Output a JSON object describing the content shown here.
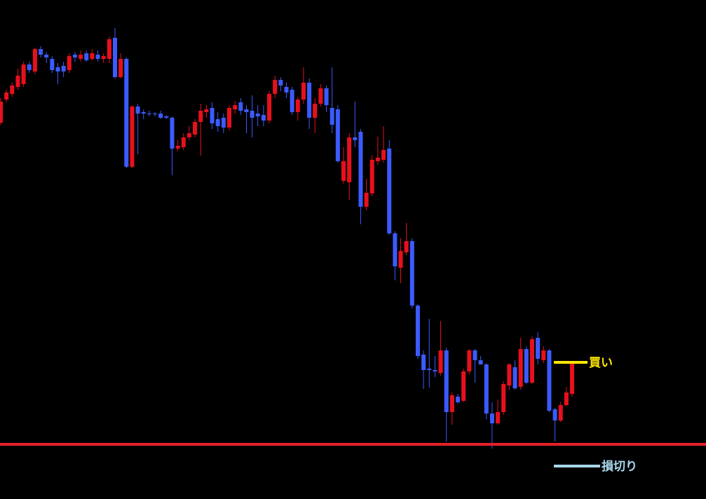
{
  "chart_data": {
    "type": "candlestick",
    "ylim": [
      0,
      712
    ],
    "up_color": "#e8101c",
    "down_color": "#3b5bff",
    "candles": [
      [
        537,
        572,
        534,
        567
      ],
      [
        570,
        584,
        566,
        580
      ],
      [
        578,
        594,
        574,
        590
      ],
      [
        588,
        614,
        584,
        604
      ],
      [
        592,
        624,
        588,
        620
      ],
      [
        620,
        624,
        608,
        612
      ],
      [
        610,
        644,
        606,
        642
      ],
      [
        642,
        646,
        630,
        634
      ],
      [
        634,
        638,
        622,
        630
      ],
      [
        628,
        632,
        608,
        612
      ],
      [
        616,
        622,
        592,
        610
      ],
      [
        618,
        624,
        602,
        610
      ],
      [
        612,
        636,
        608,
        632
      ],
      [
        634,
        638,
        624,
        630
      ],
      [
        628,
        640,
        624,
        634
      ],
      [
        636,
        640,
        624,
        626
      ],
      [
        628,
        642,
        626,
        636
      ],
      [
        634,
        640,
        624,
        628
      ],
      [
        628,
        636,
        622,
        632
      ],
      [
        628,
        660,
        622,
        656
      ],
      [
        658,
        672,
        600,
        602
      ],
      [
        602,
        636,
        600,
        628
      ],
      [
        628,
        630,
        472,
        474
      ],
      [
        474,
        562,
        472,
        560
      ],
      [
        560,
        564,
        492,
        550
      ],
      [
        552,
        556,
        542,
        550
      ],
      [
        550,
        554,
        546,
        549
      ],
      [
        550,
        552,
        546,
        549
      ],
      [
        550,
        554,
        542,
        544
      ],
      [
        546,
        548,
        542,
        544
      ],
      [
        544,
        546,
        462,
        500
      ],
      [
        500,
        512,
        496,
        504
      ],
      [
        502,
        522,
        498,
        516
      ],
      [
        516,
        532,
        512,
        522
      ],
      [
        520,
        542,
        516,
        538
      ],
      [
        538,
        564,
        490,
        554
      ],
      [
        552,
        562,
        544,
        556
      ],
      [
        558,
        566,
        528,
        536
      ],
      [
        542,
        552,
        524,
        532
      ],
      [
        544,
        550,
        522,
        530
      ],
      [
        530,
        562,
        526,
        558
      ],
      [
        556,
        568,
        550,
        562
      ],
      [
        566,
        572,
        548,
        554
      ],
      [
        556,
        562,
        522,
        552
      ],
      [
        554,
        576,
        516,
        544
      ],
      [
        550,
        562,
        532,
        546
      ],
      [
        548,
        562,
        532,
        540
      ],
      [
        540,
        582,
        536,
        578
      ],
      [
        578,
        604,
        572,
        598
      ],
      [
        598,
        602,
        582,
        590
      ],
      [
        588,
        594,
        572,
        580
      ],
      [
        584,
        588,
        548,
        552
      ],
      [
        552,
        574,
        540,
        570
      ],
      [
        570,
        616,
        564,
        594
      ],
      [
        594,
        600,
        528,
        544
      ],
      [
        544,
        572,
        522,
        564
      ],
      [
        564,
        592,
        560,
        586
      ],
      [
        586,
        590,
        552,
        562
      ],
      [
        558,
        616,
        522,
        534
      ],
      [
        556,
        562,
        480,
        482
      ],
      [
        454,
        502,
        450,
        482
      ],
      [
        452,
        522,
        427,
        516
      ],
      [
        516,
        567,
        502,
        512
      ],
      [
        524,
        528,
        392,
        417
      ],
      [
        417,
        457,
        412,
        437
      ],
      [
        436,
        490,
        432,
        484
      ],
      [
        482,
        517,
        477,
        487
      ],
      [
        484,
        532,
        480,
        498
      ],
      [
        500,
        512,
        377,
        379
      ],
      [
        379,
        382,
        312,
        332
      ],
      [
        330,
        372,
        308,
        354
      ],
      [
        352,
        394,
        348,
        368
      ],
      [
        368,
        372,
        272,
        276
      ],
      [
        276,
        278,
        200,
        204
      ],
      [
        206,
        212,
        157,
        184
      ],
      [
        186,
        257,
        159,
        184
      ],
      [
        184,
        204,
        174,
        182
      ],
      [
        180,
        254,
        176,
        212
      ],
      [
        212,
        216,
        82,
        124
      ],
      [
        124,
        152,
        106,
        148
      ],
      [
        146,
        150,
        136,
        138
      ],
      [
        140,
        186,
        138,
        182
      ],
      [
        182,
        214,
        178,
        212
      ],
      [
        212,
        214,
        166,
        198
      ],
      [
        198,
        204,
        192,
        192
      ],
      [
        192,
        194,
        114,
        122
      ],
      [
        122,
        138,
        72,
        108
      ],
      [
        108,
        142,
        106,
        124
      ],
      [
        124,
        168,
        120,
        164
      ],
      [
        162,
        194,
        156,
        192
      ],
      [
        188,
        198,
        156,
        158
      ],
      [
        160,
        230,
        156,
        214
      ],
      [
        214,
        218,
        164,
        166
      ],
      [
        166,
        232,
        164,
        228
      ],
      [
        230,
        238,
        192,
        200
      ],
      [
        198,
        218,
        194,
        212
      ],
      [
        212,
        214,
        124,
        126
      ],
      [
        128,
        130,
        82,
        112
      ],
      [
        112,
        138,
        110,
        134
      ],
      [
        134,
        160,
        132,
        152
      ],
      [
        150,
        196,
        146,
        194
      ]
    ],
    "support": {
      "level": 78,
      "color": "#e8202a"
    },
    "annotations": [
      {
        "label": "買い",
        "level": 195,
        "color": "#ffe600"
      },
      {
        "label": "損切り",
        "level": 47,
        "color": "#a8d8ea"
      }
    ]
  }
}
